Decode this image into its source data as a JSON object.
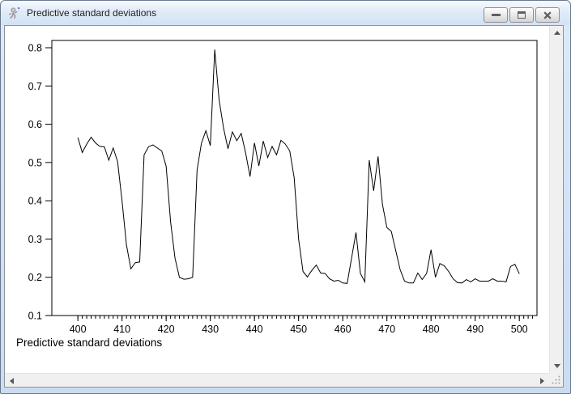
{
  "window": {
    "title": "Predictive standard deviations",
    "icons": {
      "app": "oxmetrics-figure-icon",
      "controls": [
        "minimize-icon",
        "restore-icon",
        "close-icon"
      ]
    }
  },
  "scrollbars": {
    "vertical": {
      "icons": [
        "scroll-up-icon",
        "scroll-down-icon"
      ]
    },
    "horizontal": {
      "icons": [
        "scroll-left-icon",
        "scroll-right-icon"
      ]
    },
    "corner_icon": "resize-grip-icon"
  },
  "chart_data": {
    "type": "line",
    "title": "",
    "footer_label": "Predictive standard deviations",
    "xlabel": "",
    "ylabel": "",
    "legend": "none",
    "grid": false,
    "line_color": "#000000",
    "xlim": [
      394.1,
      504.0
    ],
    "ylim": [
      0.1,
      0.819
    ],
    "x_ticks_major": [
      400,
      410,
      420,
      430,
      440,
      450,
      460,
      470,
      480,
      490,
      500
    ],
    "x_minor_tick_range": [
      400,
      503
    ],
    "y_ticks": [
      0.1,
      0.2,
      0.3,
      0.4,
      0.5,
      0.6,
      0.7,
      0.8
    ],
    "x": [
      400,
      401,
      402,
      403,
      404,
      405,
      406,
      407,
      408,
      409,
      410,
      411,
      412,
      413,
      414,
      415,
      416,
      417,
      418,
      419,
      420,
      421,
      422,
      423,
      424,
      425,
      426,
      427,
      428,
      429,
      430,
      431,
      432,
      433,
      434,
      435,
      436,
      437,
      438,
      439,
      440,
      441,
      442,
      443,
      444,
      445,
      446,
      447,
      448,
      449,
      450,
      451,
      452,
      453,
      454,
      455,
      456,
      457,
      458,
      459,
      460,
      461,
      462,
      463,
      464,
      465,
      466,
      467,
      468,
      469,
      470,
      471,
      472,
      473,
      474,
      475,
      476,
      477,
      478,
      479,
      480,
      481,
      482,
      483,
      484,
      485,
      486,
      487,
      488,
      489,
      490,
      491,
      492,
      493,
      494,
      495,
      496,
      497,
      498,
      499,
      500
    ],
    "series": [
      {
        "name": "Predictive standard deviations",
        "values": [
          0.565,
          0.526,
          0.548,
          0.566,
          0.551,
          0.542,
          0.541,
          0.506,
          0.538,
          0.502,
          0.4,
          0.285,
          0.222,
          0.238,
          0.24,
          0.52,
          0.541,
          0.546,
          0.538,
          0.53,
          0.49,
          0.345,
          0.25,
          0.2,
          0.195,
          0.196,
          0.2,
          0.48,
          0.551,
          0.583,
          0.544,
          0.795,
          0.663,
          0.59,
          0.536,
          0.58,
          0.557,
          0.576,
          0.525,
          0.463,
          0.551,
          0.491,
          0.556,
          0.513,
          0.542,
          0.52,
          0.558,
          0.548,
          0.53,
          0.46,
          0.3,
          0.215,
          0.201,
          0.218,
          0.232,
          0.211,
          0.21,
          0.196,
          0.19,
          0.192,
          0.185,
          0.184,
          0.25,
          0.317,
          0.21,
          0.188,
          0.506,
          0.426,
          0.516,
          0.39,
          0.33,
          0.32,
          0.27,
          0.22,
          0.19,
          0.185,
          0.185,
          0.211,
          0.194,
          0.21,
          0.272,
          0.2,
          0.236,
          0.23,
          0.215,
          0.196,
          0.186,
          0.185,
          0.194,
          0.188,
          0.196,
          0.19,
          0.19,
          0.19,
          0.196,
          0.19,
          0.19,
          0.188,
          0.228,
          0.234,
          0.209
        ]
      }
    ]
  }
}
